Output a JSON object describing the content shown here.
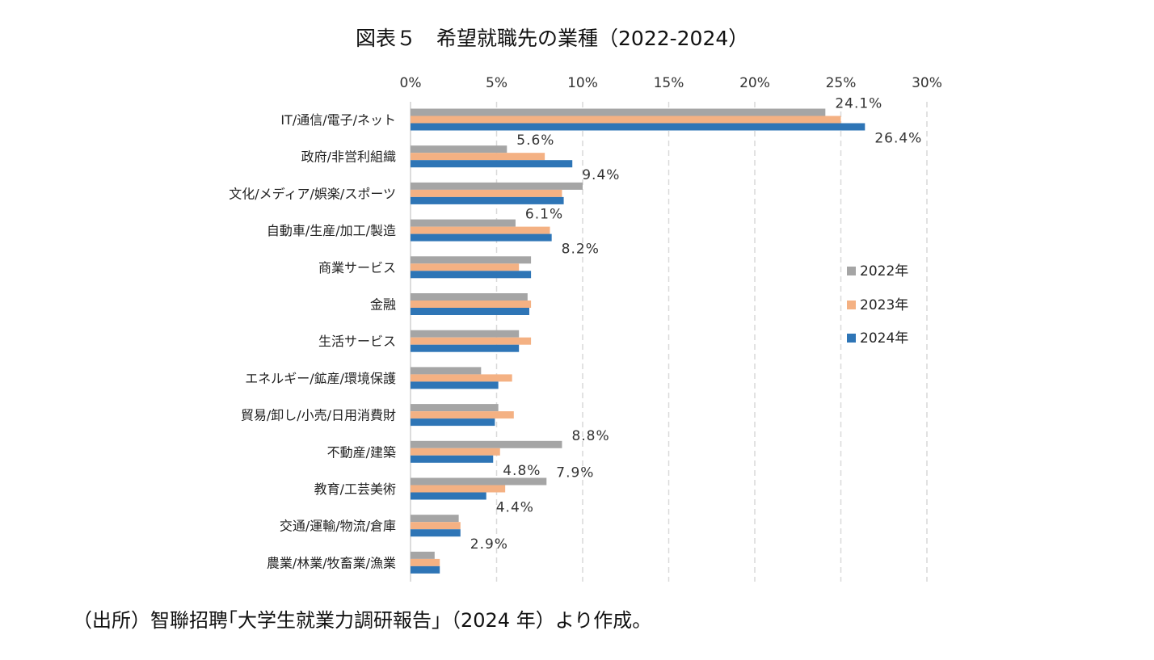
{
  "title": "図表５　希望就職先の業種（2022-2024）",
  "source": "（出所）智聯招聘｢大学生就業力調研報告｣（2024 年）より作成。",
  "chart_data": {
    "type": "bar",
    "orientation": "horizontal",
    "title": "図表５　希望就職先の業種（2022-2024）",
    "xlim": [
      0,
      30
    ],
    "x_ticks": [
      "0%",
      "5%",
      "10%",
      "15%",
      "20%",
      "25%",
      "30%"
    ],
    "x_tick_values": [
      0,
      5,
      10,
      15,
      20,
      25,
      30
    ],
    "grid": "vertical-dashed",
    "legend_position": "right",
    "categories": [
      "IT/通信/電子/ネット",
      "政府/非営利組織",
      "文化/メディア/娯楽/スポーツ",
      "自動車/生産/加工/製造",
      "商業サービス",
      "金融",
      "生活サービス",
      "エネルギー/鉱産/環境保護",
      "貿易/卸し/小売/日用消費財",
      "不動産/建築",
      "教育/工芸美術",
      "交通/運輸/物流/倉庫",
      "農業/林業/牧畜業/漁業"
    ],
    "series": [
      {
        "name": "2022年",
        "color": "#a5a5a5",
        "values": [
          24.1,
          5.6,
          10.0,
          6.1,
          7.0,
          6.8,
          6.3,
          4.1,
          5.1,
          8.8,
          7.9,
          2.8,
          1.4
        ]
      },
      {
        "name": "2023年",
        "color": "#f4b183",
        "values": [
          25.0,
          7.8,
          8.8,
          8.1,
          6.3,
          7.0,
          7.0,
          5.9,
          6.0,
          5.2,
          5.5,
          2.9,
          1.7
        ]
      },
      {
        "name": "2024年",
        "color": "#2e75b6",
        "values": [
          26.4,
          9.4,
          8.9,
          8.2,
          7.0,
          6.9,
          6.3,
          5.1,
          4.9,
          4.8,
          4.4,
          2.9,
          1.7
        ]
      }
    ],
    "data_labels": [
      {
        "category": 0,
        "series": 0,
        "text": "24.1%"
      },
      {
        "category": 0,
        "series": 2,
        "text": "26.4%"
      },
      {
        "category": 1,
        "series": 0,
        "text": "5.6%"
      },
      {
        "category": 1,
        "series": 2,
        "text": "9.4%"
      },
      {
        "category": 3,
        "series": 0,
        "text": "6.1%"
      },
      {
        "category": 3,
        "series": 2,
        "text": "8.2%"
      },
      {
        "category": 9,
        "series": 0,
        "text": "8.8%"
      },
      {
        "category": 9,
        "series": 2,
        "text": "4.8%"
      },
      {
        "category": 10,
        "series": 0,
        "text": "7.9%"
      },
      {
        "category": 10,
        "series": 2,
        "text": "4.4%"
      },
      {
        "category": 11,
        "series": 2,
        "text": "2.9%"
      }
    ]
  }
}
